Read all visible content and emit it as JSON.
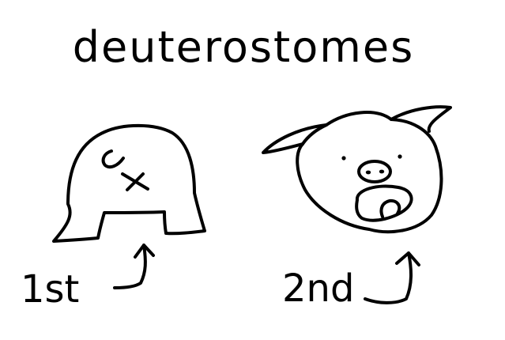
{
  "title": "deuterostomes",
  "stages": [
    {
      "label": "1st"
    },
    {
      "label": "2nd"
    }
  ],
  "colors": {
    "ink": "#000000",
    "background": "#ffffff"
  }
}
